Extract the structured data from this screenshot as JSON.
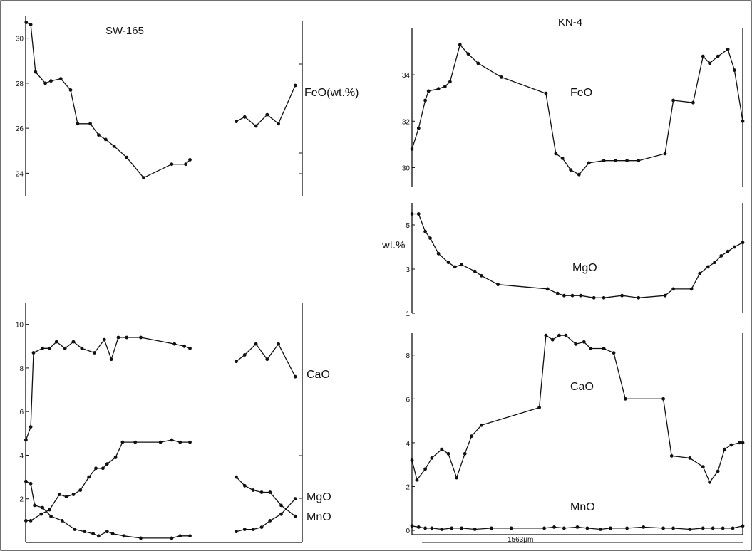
{
  "figure": {
    "stroke_color": "#111111",
    "background": "#ffffff"
  },
  "chart_data": [
    {
      "id": "sw165_feo",
      "type": "line",
      "title": "SW-165",
      "label": "FeO(wt.%)",
      "ylim": [
        23,
        31
      ],
      "yticks": [
        24,
        26,
        28,
        30
      ],
      "xlim": [
        0,
        100
      ],
      "series": [
        {
          "x": [
            0.2,
            1.8,
            3.5,
            7,
            9,
            12.5,
            16,
            18.5,
            23,
            26,
            28.5,
            31.5,
            36,
            42,
            52,
            57,
            58.5
          ],
          "y": [
            30.7,
            30.6,
            28.5,
            28.0,
            28.1,
            28.2,
            27.7,
            26.2,
            26.2,
            25.7,
            25.5,
            25.2,
            24.7,
            23.8,
            24.4,
            24.4,
            24.6
          ]
        },
        {
          "x": [
            75,
            78,
            82,
            86,
            90,
            96
          ],
          "y": [
            26.3,
            26.5,
            26.1,
            26.6,
            26.2,
            27.9
          ]
        }
      ]
    },
    {
      "id": "sw165_minor",
      "type": "line",
      "ylim": [
        0,
        11
      ],
      "yticks": [
        2,
        4,
        6,
        8,
        10
      ],
      "xlim": [
        0,
        100
      ],
      "series_labels": {
        "cao": "CaO",
        "mgo": "MgO",
        "mno": "MnO"
      },
      "series": [
        {
          "key": "cao",
          "x": [
            0.1,
            1.8,
            2.8,
            6,
            8.5,
            11,
            14,
            17,
            20,
            24.5,
            28,
            30.5,
            33,
            36,
            41,
            53,
            56.5,
            58.5
          ],
          "y": [
            4.7,
            5.3,
            8.7,
            8.9,
            8.9,
            9.2,
            8.9,
            9.2,
            8.9,
            8.7,
            9.3,
            8.4,
            9.4,
            9.4,
            9.4,
            9.1,
            9.0,
            8.9
          ]
        },
        {
          "key": "cao",
          "x": [
            75,
            78,
            82,
            86,
            90,
            96
          ],
          "y": [
            8.3,
            8.6,
            9.1,
            8.4,
            9.1,
            7.6
          ]
        },
        {
          "key": "mgo",
          "x": [
            0.1,
            1.8,
            5.5,
            8.5,
            12,
            14.5,
            17,
            19.5,
            22.5,
            25,
            27.5,
            29,
            32,
            34.5,
            39,
            48,
            52,
            55,
            58.5
          ],
          "y": [
            1.0,
            1.0,
            1.3,
            1.5,
            2.2,
            2.1,
            2.2,
            2.4,
            3.0,
            3.4,
            3.4,
            3.6,
            3.9,
            4.6,
            4.6,
            4.6,
            4.7,
            4.6,
            4.6
          ]
        },
        {
          "key": "mgo",
          "x": [
            75,
            78,
            81,
            84,
            87,
            91,
            96
          ],
          "y": [
            3.0,
            2.6,
            2.4,
            2.3,
            2.3,
            1.7,
            1.2
          ]
        },
        {
          "key": "mno",
          "x": [
            0.1,
            1.8,
            3.2,
            6,
            9,
            13,
            17.5,
            21,
            24,
            26,
            29,
            31,
            35,
            41,
            52,
            55,
            58.5
          ],
          "y": [
            2.8,
            2.7,
            1.7,
            1.6,
            1.2,
            1.0,
            0.6,
            0.5,
            0.4,
            0.3,
            0.5,
            0.4,
            0.3,
            0.2,
            0.2,
            0.3,
            0.3
          ]
        },
        {
          "key": "mno",
          "x": [
            75,
            78,
            81,
            84,
            87,
            91,
            96
          ],
          "y": [
            0.5,
            0.6,
            0.6,
            0.7,
            1.0,
            1.3,
            2.0
          ]
        }
      ]
    },
    {
      "id": "kn4_feo",
      "type": "line",
      "title": "KN-4",
      "label": "FeO",
      "ylim": [
        29,
        36
      ],
      "yticks": [
        30,
        32,
        34
      ],
      "xlim": [
        0,
        100
      ],
      "series": [
        {
          "x": [
            0,
            2,
            4,
            5,
            8,
            10,
            11.5,
            14.5,
            17,
            20,
            27,
            40.5,
            43.5,
            45.5,
            48,
            50.5,
            53.5,
            58,
            61.5,
            65,
            68.5,
            76.5,
            79,
            85,
            88,
            90,
            92.5,
            95.5,
            97.5,
            100
          ],
          "y": [
            30.8,
            31.7,
            32.9,
            33.3,
            33.4,
            33.5,
            33.7,
            35.3,
            34.9,
            34.5,
            33.9,
            33.2,
            30.6,
            30.4,
            29.9,
            29.7,
            30.2,
            30.3,
            30.3,
            30.3,
            30.3,
            30.6,
            32.9,
            32.8,
            34.8,
            34.5,
            34.8,
            35.1,
            34.2,
            32.0
          ]
        }
      ]
    },
    {
      "id": "kn4_mgo",
      "type": "line",
      "label": "MgO",
      "ylabel": "wt.%",
      "ylim": [
        1,
        6
      ],
      "yticks": [
        1,
        3,
        5
      ],
      "xlim": [
        0,
        100
      ],
      "series": [
        {
          "x": [
            0,
            2,
            4,
            5.5,
            8,
            11,
            13,
            15,
            19,
            21,
            26,
            41,
            44,
            46,
            48.5,
            51,
            55,
            58,
            63.5,
            68.5,
            76.5,
            79,
            84.5,
            87,
            89.5,
            91.5,
            93.5,
            95.5,
            97.5,
            100
          ],
          "y": [
            5.5,
            5.5,
            4.7,
            4.4,
            3.7,
            3.3,
            3.1,
            3.2,
            2.9,
            2.7,
            2.3,
            2.1,
            1.9,
            1.8,
            1.8,
            1.8,
            1.7,
            1.7,
            1.8,
            1.7,
            1.8,
            2.1,
            2.1,
            2.8,
            3.1,
            3.3,
            3.6,
            3.8,
            4.0,
            4.2
          ]
        }
      ]
    },
    {
      "id": "kn4_cao_mno",
      "type": "line",
      "xlim": [
        0,
        100
      ],
      "ylim": [
        0,
        9
      ],
      "yticks": [
        0,
        2,
        4,
        6,
        8
      ],
      "scale_label": "1563μm",
      "series_labels": {
        "cao": "CaO",
        "mno": "MnO"
      },
      "series": [
        {
          "key": "cao",
          "x": [
            0,
            1.5,
            4,
            6,
            9,
            11,
            13.5,
            16,
            18,
            21,
            38.5,
            40.5,
            42.5,
            44.5,
            46.5,
            49.5,
            52,
            54,
            58,
            61,
            64.5,
            76,
            78.5,
            84,
            88,
            90,
            92.5,
            94.5,
            96.5,
            99,
            100
          ],
          "y": [
            3.2,
            2.3,
            2.8,
            3.3,
            3.7,
            3.5,
            2.4,
            3.5,
            4.3,
            4.8,
            5.6,
            8.9,
            8.7,
            8.9,
            8.9,
            8.5,
            8.6,
            8.3,
            8.3,
            8.1,
            6.0,
            6.0,
            3.4,
            3.3,
            2.9,
            2.2,
            2.7,
            3.7,
            3.9,
            4.0,
            4.0
          ]
        },
        {
          "key": "mno",
          "x": [
            0,
            2,
            4,
            6,
            9,
            12,
            15,
            19,
            24,
            30,
            40,
            43,
            46,
            50,
            53,
            57,
            60,
            65,
            70,
            76,
            79,
            84,
            88,
            91,
            94,
            97,
            100
          ],
          "y": [
            0.2,
            0.15,
            0.1,
            0.1,
            0.05,
            0.1,
            0.1,
            0.05,
            0.1,
            0.1,
            0.1,
            0.15,
            0.1,
            0.15,
            0.1,
            0.05,
            0.1,
            0.1,
            0.15,
            0.1,
            0.1,
            0.05,
            0.1,
            0.1,
            0.1,
            0.1,
            0.2
          ]
        }
      ]
    }
  ]
}
